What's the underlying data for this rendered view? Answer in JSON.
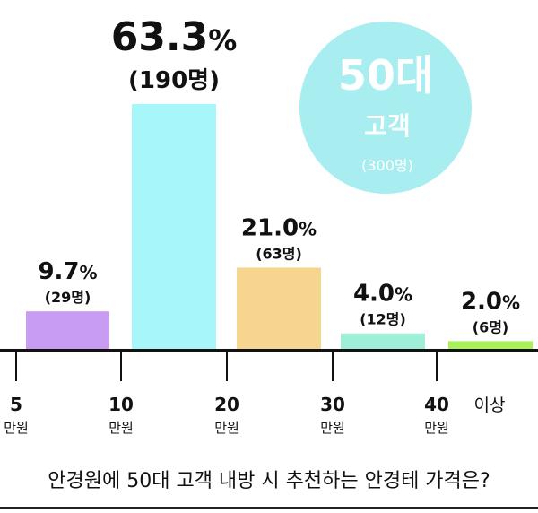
{
  "badge": {
    "age": "50대",
    "label": "고객",
    "count": "(300명)",
    "color": "#a8eef0"
  },
  "caption": "안경원에 50대 고객 내방 시 추천하는 안경테 가격은?",
  "colors": {
    "axis": "#111111",
    "bars": [
      "#c79cf2",
      "#a6f6fa",
      "#f6d68e",
      "#9fefd8",
      "#a9f05a"
    ]
  },
  "chart_data": {
    "type": "bar",
    "title": "",
    "xlabel": "",
    "ylabel": "",
    "ylim": [
      0,
      63.3
    ],
    "unit": "%",
    "bins": [
      "5~10만원",
      "10~20만원",
      "20~30만원",
      "30~40만원",
      "40만원 이상"
    ],
    "values": [
      9.7,
      63.3,
      21.0,
      4.0,
      2.0
    ],
    "value_labels": [
      "9.7%",
      "63.3%",
      "21.0%",
      "4.0%",
      "2.0%"
    ],
    "counts": [
      "(29명)",
      "(190명)",
      "(63명)",
      "(12명)",
      "(6명)"
    ],
    "tick_labels": [
      {
        "num": "5",
        "unit": "만원"
      },
      {
        "num": "10",
        "unit": "만원"
      },
      {
        "num": "20",
        "unit": "만원"
      },
      {
        "num": "30",
        "unit": "만원"
      },
      {
        "num": "40",
        "unit": "만원"
      },
      {
        "num": "이상",
        "unit": ""
      }
    ]
  }
}
